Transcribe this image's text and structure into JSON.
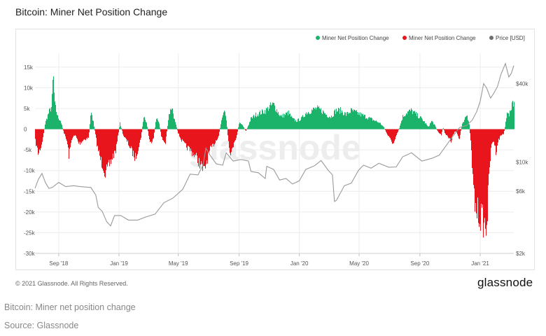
{
  "header": {
    "title": "Bitcoin: Miner Net Position Change"
  },
  "watermark": "glassnode",
  "footer": {
    "copyright": "© 2021 Glassnode. All Rights Reserved.",
    "logo": "glassnode"
  },
  "captions": {
    "line1": "Bitcoin: Miner net position change",
    "line2": "Source: Glassnode"
  },
  "colors": {
    "positive": "#1bb36a",
    "negative": "#e8161c",
    "price": "#9a9a9a",
    "legend_price": "#6e6e6e",
    "grid": "#ececec",
    "axis_text": "#555555"
  },
  "chart_data": {
    "type": "bar",
    "title": "Bitcoin: Miner Net Position Change",
    "legend": {
      "placement": "top-right",
      "entries": [
        "Miner Net Position Change",
        "Miner Net Position Change",
        "Price [USD]"
      ]
    },
    "grid": true,
    "x_range": [
      "2018-07-15",
      "2021-03-10"
    ],
    "x_ticks": [
      {
        "label": "Sep '18",
        "date": "2018-09-01"
      },
      {
        "label": "Jan '19",
        "date": "2019-01-01"
      },
      {
        "label": "May '19",
        "date": "2019-05-01"
      },
      {
        "label": "Sep '19",
        "date": "2019-09-01"
      },
      {
        "label": "Jan '20",
        "date": "2020-01-01"
      },
      {
        "label": "May '20",
        "date": "2020-05-01"
      },
      {
        "label": "Sep '20",
        "date": "2020-09-01"
      },
      {
        "label": "Jan '21",
        "date": "2021-01-01"
      }
    ],
    "y_left": {
      "ylim": [
        -30000,
        17000
      ],
      "ticks": [
        {
          "label": "15k",
          "value": 15000
        },
        {
          "label": "10k",
          "value": 10000
        },
        {
          "label": "5k",
          "value": 5000
        },
        {
          "label": "0",
          "value": 0
        },
        {
          "label": "-5k",
          "value": -5000
        },
        {
          "label": "-10k",
          "value": -10000
        },
        {
          "label": "-15k",
          "value": -15000
        },
        {
          "label": "-20k",
          "value": -20000
        },
        {
          "label": "-25k",
          "value": -25000
        },
        {
          "label": "-30k",
          "value": -30000
        }
      ]
    },
    "y_right": {
      "scale": "log",
      "ylim": [
        2000,
        62000
      ],
      "ticks": [
        {
          "label": "$40k",
          "value": 40000
        },
        {
          "label": "$10k",
          "value": 10000
        },
        {
          "label": "$6k",
          "value": 6000
        },
        {
          "label": "$2k",
          "value": 2000
        }
      ]
    },
    "series": [
      {
        "name": "Miner Net Position Change",
        "kind": "bar",
        "color_positive": "#1bb36a",
        "color_negative": "#e8161c",
        "anchors": [
          [
            "2018-07-15",
            -2500
          ],
          [
            "2018-07-22",
            -6000
          ],
          [
            "2018-07-29",
            -3500
          ],
          [
            "2018-08-05",
            1500
          ],
          [
            "2018-08-12",
            4000
          ],
          [
            "2018-08-18",
            5500
          ],
          [
            "2018-08-21",
            13500
          ],
          [
            "2018-08-24",
            6000
          ],
          [
            "2018-08-30",
            3000
          ],
          [
            "2018-09-05",
            2000
          ],
          [
            "2018-09-12",
            -1000
          ],
          [
            "2018-09-18",
            -3000
          ],
          [
            "2018-09-22",
            -6500
          ],
          [
            "2018-09-28",
            -2000
          ],
          [
            "2018-10-05",
            -1500
          ],
          [
            "2018-10-12",
            -3500
          ],
          [
            "2018-10-22",
            -2500
          ],
          [
            "2018-11-01",
            -2000
          ],
          [
            "2018-11-05",
            4000
          ],
          [
            "2018-11-10",
            2000
          ],
          [
            "2018-11-18",
            -4000
          ],
          [
            "2018-11-25",
            -7500
          ],
          [
            "2018-12-01",
            -9000
          ],
          [
            "2018-12-05",
            -11000
          ],
          [
            "2018-12-10",
            -9500
          ],
          [
            "2018-12-18",
            -7000
          ],
          [
            "2018-12-26",
            -5000
          ],
          [
            "2019-01-03",
            1500
          ],
          [
            "2019-01-10",
            -1500
          ],
          [
            "2019-01-20",
            -3500
          ],
          [
            "2019-01-28",
            -5500
          ],
          [
            "2019-02-03",
            -7000
          ],
          [
            "2019-02-09",
            -4500
          ],
          [
            "2019-02-14",
            -2500
          ],
          [
            "2019-02-20",
            3000
          ],
          [
            "2019-02-26",
            1500
          ],
          [
            "2019-03-05",
            -3500
          ],
          [
            "2019-03-12",
            -2000
          ],
          [
            "2019-03-18",
            3000
          ],
          [
            "2019-03-24",
            1000
          ],
          [
            "2019-03-28",
            -2000
          ],
          [
            "2019-04-05",
            -3500
          ],
          [
            "2019-04-12",
            3500
          ],
          [
            "2019-04-18",
            5500
          ],
          [
            "2019-04-24",
            2000
          ],
          [
            "2019-05-01",
            -1000
          ],
          [
            "2019-05-07",
            -2500
          ],
          [
            "2019-05-15",
            -4000
          ],
          [
            "2019-05-25",
            -5000
          ],
          [
            "2019-06-05",
            -6500
          ],
          [
            "2019-06-15",
            -8500
          ],
          [
            "2019-06-22",
            -10500
          ],
          [
            "2019-06-28",
            -7500
          ],
          [
            "2019-07-05",
            -5000
          ],
          [
            "2019-07-15",
            -3000
          ],
          [
            "2019-07-22",
            -1500
          ],
          [
            "2019-07-28",
            2500
          ],
          [
            "2019-08-03",
            4500
          ],
          [
            "2019-08-07",
            1500
          ],
          [
            "2019-08-12",
            -4500
          ],
          [
            "2019-08-17",
            -6000
          ],
          [
            "2019-08-22",
            -3000
          ],
          [
            "2019-08-28",
            -1500
          ],
          [
            "2019-09-01",
            1500
          ],
          [
            "2019-09-08",
            1000
          ],
          [
            "2019-09-15",
            -500
          ],
          [
            "2019-09-25",
            2500
          ],
          [
            "2019-10-05",
            3500
          ],
          [
            "2019-10-15",
            4000
          ],
          [
            "2019-10-25",
            4500
          ],
          [
            "2019-11-03",
            5500
          ],
          [
            "2019-11-10",
            6000
          ],
          [
            "2019-11-17",
            4500
          ],
          [
            "2019-11-25",
            3000
          ],
          [
            "2019-12-03",
            3500
          ],
          [
            "2019-12-10",
            4000
          ],
          [
            "2019-12-18",
            2500
          ],
          [
            "2019-12-26",
            2000
          ],
          [
            "2020-01-05",
            2500
          ],
          [
            "2020-01-15",
            4000
          ],
          [
            "2020-01-25",
            4500
          ],
          [
            "2020-02-05",
            5000
          ],
          [
            "2020-02-15",
            4500
          ],
          [
            "2020-02-25",
            3500
          ],
          [
            "2020-03-05",
            3000
          ],
          [
            "2020-03-15",
            4500
          ],
          [
            "2020-03-25",
            4500
          ],
          [
            "2020-04-05",
            3500
          ],
          [
            "2020-04-15",
            4500
          ],
          [
            "2020-04-25",
            4000
          ],
          [
            "2020-05-05",
            3500
          ],
          [
            "2020-05-15",
            3000
          ],
          [
            "2020-05-25",
            2500
          ],
          [
            "2020-06-03",
            2000
          ],
          [
            "2020-06-12",
            1500
          ],
          [
            "2020-06-20",
            500
          ],
          [
            "2020-06-26",
            -1000
          ],
          [
            "2020-07-03",
            -2500
          ],
          [
            "2020-07-10",
            -3500
          ],
          [
            "2020-07-16",
            -1500
          ],
          [
            "2020-07-22",
            500
          ],
          [
            "2020-07-28",
            3000
          ],
          [
            "2020-08-05",
            4000
          ],
          [
            "2020-08-15",
            4500
          ],
          [
            "2020-08-25",
            3500
          ],
          [
            "2020-09-05",
            2500
          ],
          [
            "2020-09-12",
            1500
          ],
          [
            "2020-09-18",
            500
          ],
          [
            "2020-09-25",
            2000
          ],
          [
            "2020-10-01",
            1000
          ],
          [
            "2020-10-07",
            -500
          ],
          [
            "2020-10-14",
            -1500
          ],
          [
            "2020-10-18",
            500
          ],
          [
            "2020-10-22",
            -1000
          ],
          [
            "2020-10-28",
            -2000
          ],
          [
            "2020-11-03",
            -3000
          ],
          [
            "2020-11-07",
            -1500
          ],
          [
            "2020-11-11",
            -500
          ],
          [
            "2020-11-15",
            -1000
          ],
          [
            "2020-11-20",
            -2500
          ],
          [
            "2020-11-25",
            1000
          ],
          [
            "2020-11-30",
            2000
          ],
          [
            "2020-12-05",
            3500
          ],
          [
            "2020-12-10",
            1500
          ],
          [
            "2020-12-14",
            -5000
          ],
          [
            "2020-12-18",
            -14000
          ],
          [
            "2020-12-22",
            -19000
          ],
          [
            "2020-12-27",
            -20000
          ],
          [
            "2021-01-01",
            -21000
          ],
          [
            "2021-01-05",
            -21500
          ],
          [
            "2021-01-08",
            -22500
          ],
          [
            "2021-01-12",
            -24000
          ],
          [
            "2021-01-16",
            -20000
          ],
          [
            "2021-01-20",
            -9000
          ],
          [
            "2021-01-24",
            -4000
          ],
          [
            "2021-01-28",
            -2500
          ],
          [
            "2021-02-02",
            -5500
          ],
          [
            "2021-02-06",
            -3000
          ],
          [
            "2021-02-12",
            -1500
          ],
          [
            "2021-02-18",
            -1000
          ],
          [
            "2021-02-21",
            1000
          ],
          [
            "2021-02-25",
            5000
          ],
          [
            "2021-02-28",
            3000
          ],
          [
            "2021-03-04",
            4500
          ],
          [
            "2021-03-07",
            7000
          ],
          [
            "2021-03-10",
            6500
          ]
        ]
      },
      {
        "name": "Price [USD]",
        "kind": "line",
        "color": "#9a9a9a",
        "axis": "right",
        "points": [
          [
            "2018-07-15",
            6300
          ],
          [
            "2018-07-22",
            7400
          ],
          [
            "2018-07-29",
            8200
          ],
          [
            "2018-08-05",
            7000
          ],
          [
            "2018-08-12",
            6300
          ],
          [
            "2018-08-19",
            6400
          ],
          [
            "2018-09-01",
            7000
          ],
          [
            "2018-09-15",
            6500
          ],
          [
            "2018-10-01",
            6600
          ],
          [
            "2018-10-15",
            6500
          ],
          [
            "2018-11-05",
            6400
          ],
          [
            "2018-11-15",
            5600
          ],
          [
            "2018-11-20",
            4500
          ],
          [
            "2018-11-28",
            4200
          ],
          [
            "2018-12-07",
            3500
          ],
          [
            "2018-12-15",
            3250
          ],
          [
            "2018-12-23",
            3900
          ],
          [
            "2019-01-05",
            3900
          ],
          [
            "2019-01-20",
            3600
          ],
          [
            "2019-02-08",
            3600
          ],
          [
            "2019-02-24",
            3800
          ],
          [
            "2019-03-15",
            4000
          ],
          [
            "2019-04-02",
            4900
          ],
          [
            "2019-04-20",
            5300
          ],
          [
            "2019-05-10",
            6200
          ],
          [
            "2019-05-25",
            8100
          ],
          [
            "2019-06-10",
            8000
          ],
          [
            "2019-06-20",
            9500
          ],
          [
            "2019-06-26",
            12800
          ],
          [
            "2019-07-05",
            11200
          ],
          [
            "2019-07-17",
            9700
          ],
          [
            "2019-07-30",
            9500
          ],
          [
            "2019-08-06",
            11800
          ],
          [
            "2019-08-20",
            10200
          ],
          [
            "2019-09-05",
            10500
          ],
          [
            "2019-09-20",
            10200
          ],
          [
            "2019-09-25",
            8500
          ],
          [
            "2019-10-10",
            8300
          ],
          [
            "2019-10-24",
            7500
          ],
          [
            "2019-10-27",
            9300
          ],
          [
            "2019-11-10",
            8800
          ],
          [
            "2019-11-22",
            7300
          ],
          [
            "2019-12-05",
            7500
          ],
          [
            "2019-12-18",
            6800
          ],
          [
            "2020-01-01",
            7200
          ],
          [
            "2020-01-14",
            8800
          ],
          [
            "2020-02-01",
            9400
          ],
          [
            "2020-02-14",
            10300
          ],
          [
            "2020-02-28",
            8700
          ],
          [
            "2020-03-08",
            8000
          ],
          [
            "2020-03-12",
            5000
          ],
          [
            "2020-03-16",
            5100
          ],
          [
            "2020-04-01",
            6600
          ],
          [
            "2020-04-15",
            6900
          ],
          [
            "2020-04-30",
            8700
          ],
          [
            "2020-05-10",
            9500
          ],
          [
            "2020-05-25",
            9000
          ],
          [
            "2020-06-10",
            9800
          ],
          [
            "2020-06-30",
            9150
          ],
          [
            "2020-07-15",
            9200
          ],
          [
            "2020-07-28",
            11000
          ],
          [
            "2020-08-15",
            11800
          ],
          [
            "2020-09-05",
            10200
          ],
          [
            "2020-09-25",
            10700
          ],
          [
            "2020-10-10",
            11300
          ],
          [
            "2020-10-21",
            12900
          ],
          [
            "2020-11-05",
            15500
          ],
          [
            "2020-11-20",
            18400
          ],
          [
            "2020-12-05",
            19200
          ],
          [
            "2020-12-16",
            21000
          ],
          [
            "2020-12-25",
            24500
          ],
          [
            "2021-01-01",
            29300
          ],
          [
            "2021-01-08",
            40000
          ],
          [
            "2021-01-14",
            37000
          ],
          [
            "2021-01-22",
            31000
          ],
          [
            "2021-01-28",
            33500
          ],
          [
            "2021-02-05",
            38000
          ],
          [
            "2021-02-12",
            47000
          ],
          [
            "2021-02-21",
            57000
          ],
          [
            "2021-02-28",
            45000
          ],
          [
            "2021-03-05",
            48000
          ],
          [
            "2021-03-10",
            55000
          ]
        ]
      }
    ]
  }
}
